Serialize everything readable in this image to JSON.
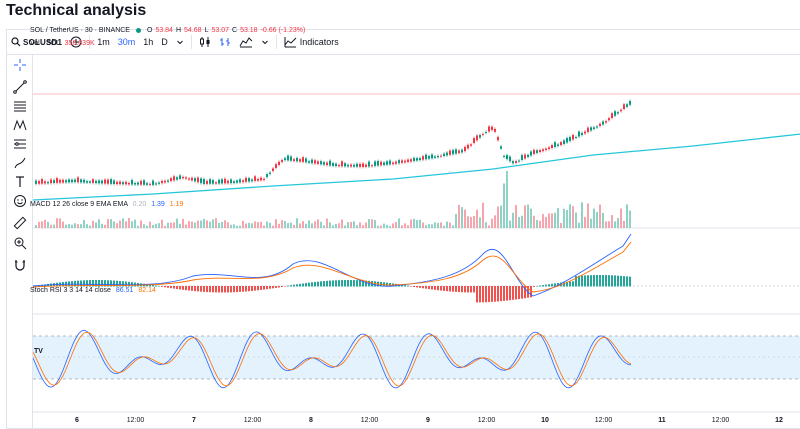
{
  "page": {
    "title": "Technical analysis"
  },
  "toolbar": {
    "symbol": "SOLUSD1",
    "timeframes": [
      "1m",
      "30m",
      "1h",
      "D"
    ],
    "active_timeframe": "30m",
    "indicators_label": "Indicators"
  },
  "legend": {
    "title": "SOL / TetherUS · 30 · BINANCE",
    "open_label": "O",
    "open": "53.84",
    "high_label": "H",
    "high": "54.68",
    "low_label": "L",
    "low": "53.07",
    "close_label": "C",
    "close": "53.18",
    "change": "-0.66 (-1.23%)",
    "volume_label": "Vol · SOL",
    "volume": "356.639K"
  },
  "macd": {
    "label": "MACD 12 26 close 9 EMA EMA",
    "hist": "0.20",
    "macd": "1.39",
    "signal": "1.19"
  },
  "stoch_rsi": {
    "label": "Stoch RSI 3 3 14 14 close",
    "k": "86.51",
    "d": "82.14"
  },
  "x_axis": {
    "labels": [
      {
        "text": "6",
        "bold": true
      },
      {
        "text": "12:00",
        "bold": false
      },
      {
        "text": "7",
        "bold": true
      },
      {
        "text": "12:00",
        "bold": false
      },
      {
        "text": "8",
        "bold": true
      },
      {
        "text": "12:00",
        "bold": false
      },
      {
        "text": "9",
        "bold": true
      },
      {
        "text": "12:00",
        "bold": false
      },
      {
        "text": "10",
        "bold": true
      },
      {
        "text": "12:00",
        "bold": false
      },
      {
        "text": "11",
        "bold": true
      },
      {
        "text": "12:00",
        "bold": false
      },
      {
        "text": "12",
        "bold": true
      }
    ]
  },
  "colors": {
    "up": "#089981",
    "down": "#f23645",
    "ma": "#26c6da",
    "macd": "#2962ff",
    "signal": "#ff6d00",
    "rsi_band": "#e3f2fd"
  },
  "icons": [
    "crosshair-icon",
    "trend-line-icon",
    "fib-icon",
    "pattern-icon",
    "projection-icon",
    "brush-icon",
    "text-icon",
    "emoji-icon",
    "ruler-icon",
    "zoom-icon",
    "magnet-icon"
  ]
}
